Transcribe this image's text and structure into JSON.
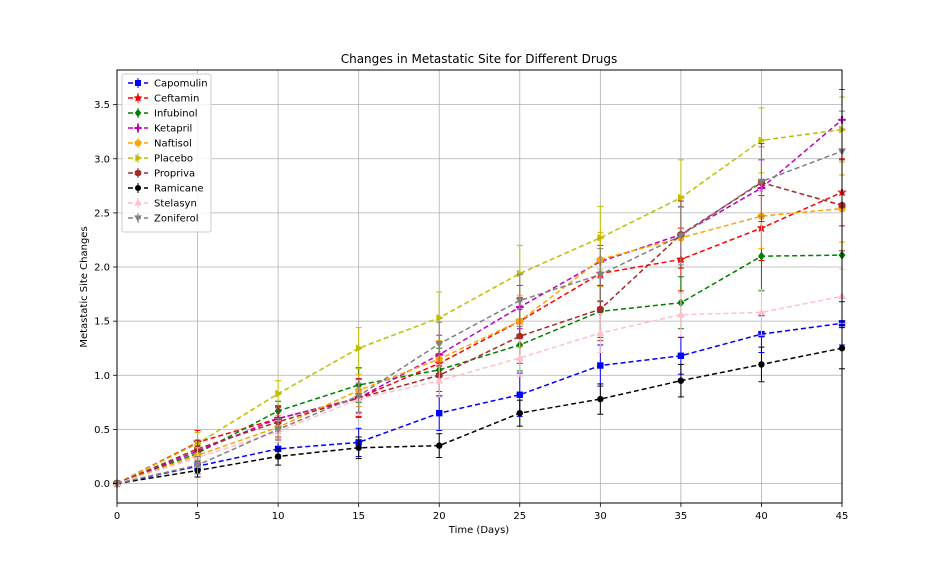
{
  "chart_data": {
    "type": "line",
    "title": "Changes in Metastatic Site for Different Drugs",
    "xlabel": "Time (Days)",
    "ylabel": "Metastatic Site Changes",
    "xlim": [
      0,
      45
    ],
    "ylim": [
      -0.18,
      3.82
    ],
    "grid": true,
    "legend_position": "top-left",
    "x": [
      0,
      5,
      10,
      15,
      20,
      25,
      30,
      35,
      40,
      45
    ],
    "x_ticks": [
      "0",
      "5",
      "10",
      "15",
      "20",
      "25",
      "30",
      "35",
      "40",
      "45"
    ],
    "y_ticks": [
      "0.0",
      "0.5",
      "1.0",
      "1.5",
      "2.0",
      "2.5",
      "3.0",
      "3.5"
    ],
    "series": [
      {
        "name": "Capomulin",
        "color": "#0000ff",
        "marker": "square",
        "values": [
          0,
          0.16,
          0.32,
          0.38,
          0.65,
          0.82,
          1.09,
          1.18,
          1.38,
          1.48
        ],
        "errors": [
          0,
          0.07,
          0.09,
          0.13,
          0.16,
          0.2,
          0.19,
          0.17,
          0.17,
          0.2
        ]
      },
      {
        "name": "Ceftamin",
        "color": "#ff0000",
        "marker": "star",
        "values": [
          0,
          0.38,
          0.6,
          0.79,
          1.11,
          1.5,
          1.94,
          2.07,
          2.36,
          2.69
        ],
        "errors": [
          0,
          0.11,
          0.12,
          0.17,
          0.18,
          0.22,
          0.26,
          0.29,
          0.3,
          0.31
        ]
      },
      {
        "name": "Infubinol",
        "color": "#008000",
        "marker": "diamond",
        "values": [
          0,
          0.28,
          0.67,
          0.91,
          1.05,
          1.28,
          1.59,
          1.67,
          2.1,
          2.11
        ],
        "errors": [
          0,
          0.07,
          0.09,
          0.16,
          0.2,
          0.24,
          0.24,
          0.24,
          0.32,
          0.43
        ]
      },
      {
        "name": "Ketapril",
        "color": "#bf00bf",
        "marker": "plus",
        "values": [
          0,
          0.3,
          0.6,
          0.79,
          1.19,
          1.63,
          2.05,
          2.3,
          2.73,
          3.36
        ],
        "errors": [
          0,
          0.1,
          0.1,
          0.14,
          0.18,
          0.2,
          0.22,
          0.25,
          0.26,
          0.28
        ]
      },
      {
        "name": "Naftisol",
        "color": "#ffa500",
        "marker": "pentagon",
        "values": [
          0,
          0.26,
          0.52,
          0.86,
          1.15,
          1.5,
          2.07,
          2.27,
          2.47,
          2.54
        ],
        "errors": [
          0,
          0.1,
          0.11,
          0.15,
          0.17,
          0.24,
          0.25,
          0.28,
          0.3,
          0.31
        ]
      },
      {
        "name": "Placebo",
        "color": "#bfbf00",
        "marker": "triangle-right",
        "values": [
          0,
          0.37,
          0.83,
          1.25,
          1.53,
          1.94,
          2.27,
          2.64,
          3.17,
          3.27
        ],
        "errors": [
          0,
          0.1,
          0.12,
          0.19,
          0.24,
          0.26,
          0.29,
          0.35,
          0.3,
          0.3
        ]
      },
      {
        "name": "Propriva",
        "color": "#a52a2a",
        "marker": "hexagon",
        "values": [
          0,
          0.32,
          0.57,
          0.79,
          1.0,
          1.36,
          1.61,
          2.3,
          2.78,
          2.57
        ],
        "errors": [
          0,
          0.08,
          0.14,
          0.18,
          0.2,
          0.25,
          0.29,
          0.31,
          0.36,
          0.42
        ]
      },
      {
        "name": "Ramicane",
        "color": "#000000",
        "marker": "circle",
        "values": [
          0,
          0.12,
          0.25,
          0.33,
          0.35,
          0.65,
          0.78,
          0.95,
          1.1,
          1.25
        ],
        "errors": [
          0,
          0.06,
          0.08,
          0.1,
          0.11,
          0.12,
          0.14,
          0.15,
          0.16,
          0.19
        ]
      },
      {
        "name": "Stelasyn",
        "color": "#ffc0cb",
        "marker": "triangle-up",
        "values": [
          0,
          0.24,
          0.48,
          0.78,
          0.95,
          1.16,
          1.39,
          1.56,
          1.58,
          1.73
        ],
        "errors": [
          0,
          0.09,
          0.1,
          0.15,
          0.15,
          0.17,
          0.18,
          0.2,
          0.21,
          0.25
        ]
      },
      {
        "name": "Zoniferol",
        "color": "#808080",
        "marker": "triangle-down",
        "values": [
          0,
          0.17,
          0.5,
          0.81,
          1.29,
          1.69,
          1.93,
          2.29,
          2.79,
          3.07
        ],
        "errors": [
          0,
          0.08,
          0.1,
          0.15,
          0.2,
          0.24,
          0.24,
          0.27,
          0.32,
          0.37
        ]
      }
    ]
  }
}
